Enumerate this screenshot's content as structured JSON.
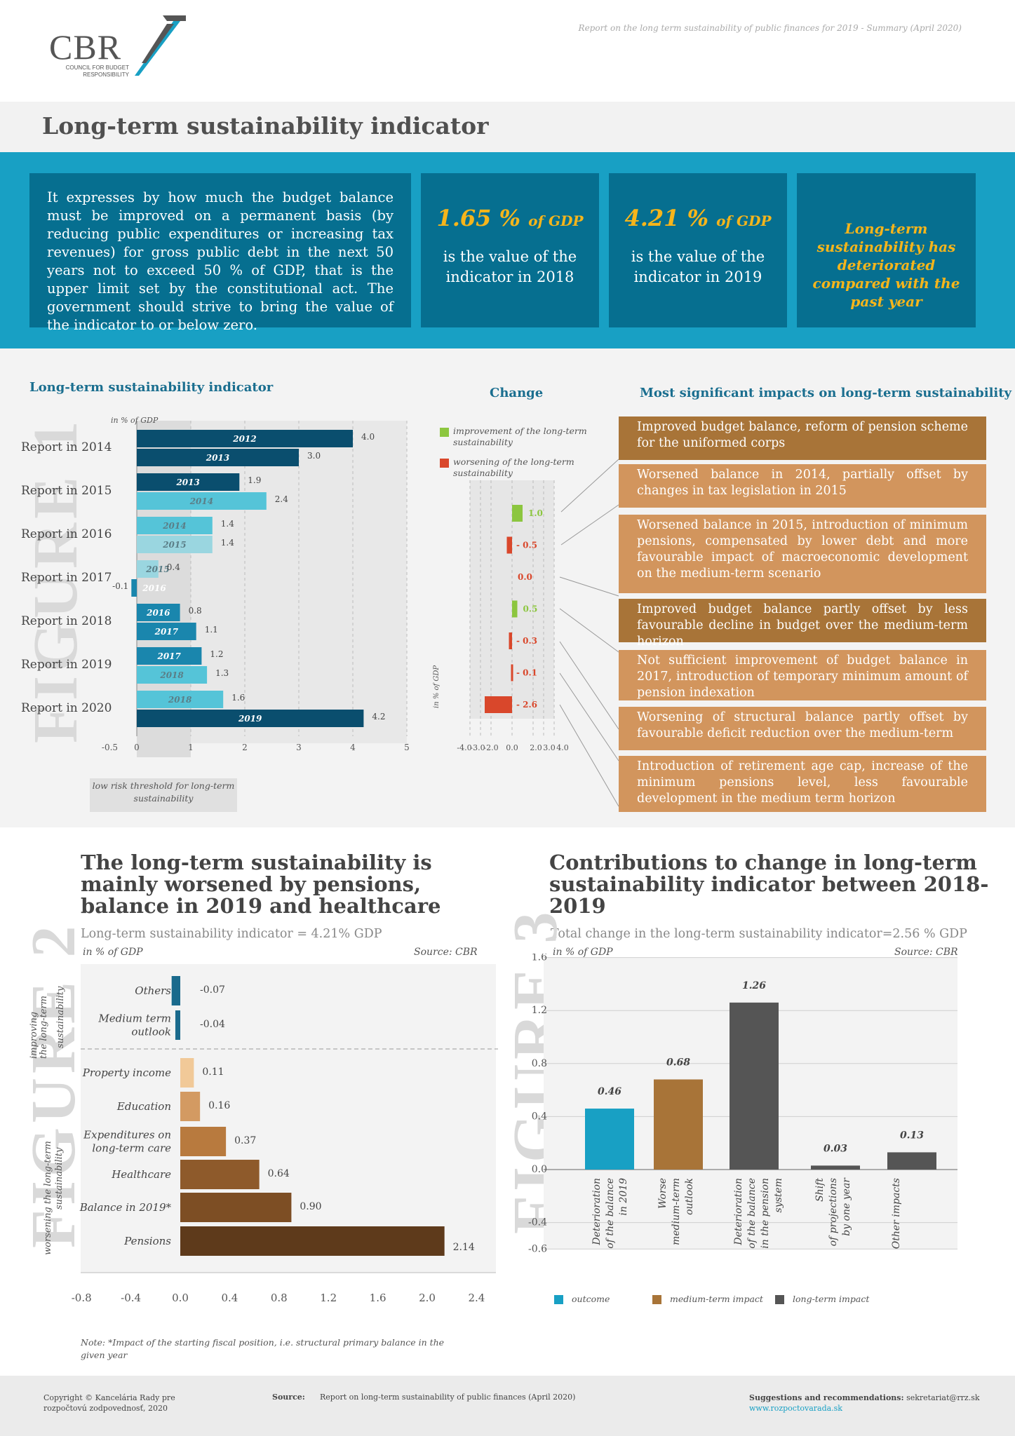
{
  "header": {
    "logo": "CBR",
    "logo_sub_1": "COUNCIL FOR BUDGET",
    "logo_sub_2": "RESPONSIBILITY",
    "report_note": "Report on the long term sustainability of public finances for 2019 - Summary (April 2020)"
  },
  "title": "Long-term sustainability indicator",
  "intro": "It expresses by how much the budget balance must be improved on a permanent basis (by reducing public expenditures or increasing tax revenues) for gross public debt in the next 50 years not to exceed 50 % of GDP, that is the upper limit set by the constitutional act. The government should strive to bring the value of the indicator to or below zero.",
  "value_2018": {
    "value": "1.65 %",
    "unit": "of GDP",
    "caption": "is the value of the indicator in 2018"
  },
  "value_2019": {
    "value": "4.21 %",
    "unit": "of GDP",
    "caption": "is the value of the indicator in 2019"
  },
  "conclusion": "Long-term sustainability has deteriorated compared with the past year",
  "fig1": {
    "heading": "Long-term sustainability indicator",
    "fig_label": "FIGURE 1",
    "change_heading": "Change",
    "impacts_heading": "Most significant impacts on long-term sustainability",
    "unit": "in % of GDP",
    "threshold": "low risk threshold for long-term sustainability",
    "legend_improve": "improvement of the long-term sustainability",
    "legend_worsen": "worsening of the long-term sustainability",
    "change_unit": "in % of GDP",
    "impacts": [
      "Improved budget balance, reform of pension scheme for the uniformed corps",
      "Worsened balance in 2014, partially offset by changes in tax legislation in 2015",
      "Worsened balance in 2015, introduction of minimum pensions, compensated by lower debt and more favourable impact of macroeconomic development on the medium-term scenario",
      "Improved budget balance partly offset by less favourable decline in budget over the medium-term horizon",
      "Not sufficient improvement of budget balance in 2017, introduction of temporary minimum amount of pension indexation",
      "Worsening of structural balance partly offset by favourable deficit reduction over the medium-term",
      "Introduction of retirement age cap, increase of the minimum pensions level, less favourable development in the medium term horizon"
    ]
  },
  "fig2": {
    "heading": "The long-term sustainability is mainly worsened by pensions, balance in 2019 and healthcare",
    "subtitle": "Long-term sustainability indicator = 4.21% GDP",
    "unit": "in % of GDP",
    "source": "Source: CBR",
    "fig_label": "FIGURE 2",
    "axis_improve": "improving the long-term sustainability",
    "axis_worsen": "worsening the long-term sustainability",
    "note": "Note: *Impact of the starting fiscal position, i.e. structural primary balance in the given year"
  },
  "fig3": {
    "heading": "Contributions to change in long-term sustainability indicator between 2018-2019",
    "subtitle": "Total change in the long-term sustainability indicator=2.56 % GDP",
    "unit": "in % of GDP",
    "source": "Source: CBR",
    "fig_label": "FIGURE 3",
    "legend": [
      "outcome",
      "medium-term impact",
      "long-term impact"
    ]
  },
  "footer": {
    "copyright_1": "Copyright © Kancelária Rady pre",
    "copyright_2": "rozpočtovú zodpovednosť, 2020",
    "source_label": "Source:",
    "source": "Report on long-term sustainability of public finances (April 2020)",
    "suggest_label": "Suggestions and recommendations:",
    "email": "sekretariat@rrz.sk",
    "web": "www.rozpoctovarada.sk"
  },
  "chart_data": [
    {
      "type": "bar",
      "orientation": "horizontal",
      "title": "Long-term sustainability indicator",
      "unit": "in % of GDP",
      "xlim": [
        -0.5,
        5
      ],
      "xticks": [
        "-0.5",
        "0",
        "1",
        "2",
        "3",
        "4",
        "5"
      ],
      "groups": [
        {
          "label": "Report in 2014",
          "bars": [
            {
              "year": "2012",
              "value": 4.0,
              "text": "4.0"
            },
            {
              "year": "2013",
              "value": 3.0,
              "text": "3.0"
            }
          ]
        },
        {
          "label": "Report in 2015",
          "bars": [
            {
              "year": "2013",
              "value": 1.9,
              "text": "1.9"
            },
            {
              "year": "2014",
              "value": 2.4,
              "text": "2.4"
            }
          ]
        },
        {
          "label": "Report in 2016",
          "bars": [
            {
              "year": "2014",
              "value": 1.4,
              "text": "1.4"
            },
            {
              "year": "2015",
              "value": 1.4,
              "text": "1.4"
            }
          ]
        },
        {
          "label": "Report in 2017",
          "bars": [
            {
              "year": "2015",
              "value": 0.4,
              "text": "0.4"
            },
            {
              "year": "2016",
              "value": -0.1,
              "text": "-0.1"
            }
          ]
        },
        {
          "label": "Report in 2018",
          "bars": [
            {
              "year": "2016",
              "value": 0.8,
              "text": "0.8"
            },
            {
              "year": "2017",
              "value": 1.1,
              "text": "1.1"
            }
          ]
        },
        {
          "label": "Report in 2019",
          "bars": [
            {
              "year": "2017",
              "value": 1.2,
              "text": "1.2"
            },
            {
              "year": "2018",
              "value": 1.3,
              "text": "1.3"
            }
          ]
        },
        {
          "label": "Report in 2020",
          "bars": [
            {
              "year": "2018",
              "value": 1.6,
              "text": "1.6"
            },
            {
              "year": "2019",
              "value": 4.2,
              "text": "4.2"
            }
          ]
        }
      ],
      "colors": [
        "#0a4e6e",
        "#1a86ad",
        "#55c4d8",
        "#9ad6e0"
      ]
    },
    {
      "type": "bar",
      "orientation": "horizontal",
      "title": "Change",
      "unit": "in % of GDP",
      "xlim": [
        -4,
        4
      ],
      "xticks": [
        "-4.0",
        "-3.0",
        "-2.0",
        "0.0",
        "2.0",
        "3.0",
        "4.0"
      ],
      "values": [
        1.0,
        -0.5,
        0.0,
        0.5,
        -0.3,
        -0.1,
        -2.6
      ],
      "texts": [
        "1.0",
        "- 0.5",
        "0.0",
        "0.5",
        "- 0.3",
        "- 0.1",
        "- 2.6"
      ],
      "improve_color": "#8cc63f",
      "worsen_color": "#d9472b"
    },
    {
      "type": "bar",
      "orientation": "horizontal",
      "title": "The long-term sustainability is mainly worsened by pensions, balance in 2019 and healthcare",
      "unit": "in % of GDP",
      "xlim": [
        -0.8,
        2.4
      ],
      "xticks": [
        "-0.8",
        "-0.4",
        "0.0",
        "0.4",
        "0.8",
        "1.2",
        "1.6",
        "2.0",
        "2.4"
      ],
      "categories": [
        "Others",
        "Medium term outlook",
        "Property income",
        "Education",
        "Expenditures on long-term care",
        "Healthcare",
        "Balance in 2019*",
        "Pensions"
      ],
      "values": [
        -0.07,
        -0.04,
        0.11,
        0.16,
        0.37,
        0.64,
        0.9,
        2.14
      ],
      "texts": [
        "-0.07",
        "-0.04",
        "0.11",
        "0.16",
        "0.37",
        "0.64",
        "0.90",
        "2.14"
      ],
      "colors": [
        "#1a6a8c",
        "#1a6a8c",
        "#f1c998",
        "#d39a62",
        "#b87a3e",
        "#8e5a2b",
        "#7d4e24",
        "#5e3a1b"
      ]
    },
    {
      "type": "bar",
      "title": "Contributions to change in long-term sustainability indicator between 2018-2019",
      "unit": "in % of GDP",
      "ylim": [
        -0.6,
        1.6
      ],
      "yticks": [
        "1.6",
        "1.2",
        "0.8",
        "0.4",
        "0.0",
        "-0.4",
        "-0.6"
      ],
      "categories": [
        "Deterioration of the balance in 2019",
        "Worse medium-term outlook",
        "Deterioration of the balance in the pension system",
        "Shift of projections by one year",
        "Other impacts"
      ],
      "values": [
        0.46,
        0.68,
        1.26,
        0.03,
        0.13
      ],
      "texts": [
        "0.46",
        "0.68",
        "1.26",
        "0.03",
        "0.13"
      ],
      "series_type": [
        "outcome",
        "medium-term impact",
        "long-term impact",
        "long-term impact",
        "long-term impact"
      ],
      "colors": {
        "outcome": "#18a0c4",
        "medium-term impact": "#a87438",
        "long-term impact": "#555"
      }
    }
  ]
}
